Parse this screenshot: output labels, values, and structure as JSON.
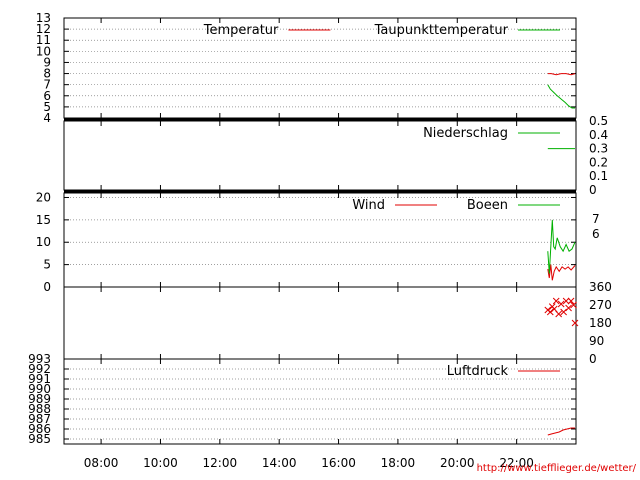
{
  "credit": "http://www.tiefflieger.de/wetter/",
  "colors": {
    "red": "#e00000",
    "green": "#00b000",
    "grid": "#808080"
  },
  "chart_data": [
    {
      "type": "line",
      "ylim": [
        4,
        13
      ],
      "yticks": [
        "4",
        "5",
        "6",
        "7",
        "8",
        "9",
        "10",
        "11",
        "12",
        "13"
      ],
      "legend_position": "top-right",
      "grid": true,
      "series": [
        {
          "name": "Temperatur",
          "color": "#e00000",
          "x": [
            "23:03",
            "23:10",
            "23:20",
            "23:30",
            "23:40",
            "23:50",
            "23:58"
          ],
          "values": [
            8.0,
            8.0,
            7.9,
            8.0,
            8.0,
            7.9,
            8.0
          ]
        },
        {
          "name": "Taupunkttemperatur",
          "color": "#00b000",
          "x": [
            "23:03",
            "23:08",
            "23:15",
            "23:22",
            "23:30",
            "23:38",
            "23:45",
            "23:52",
            "23:58"
          ],
          "values": [
            7.0,
            6.6,
            6.3,
            6.0,
            5.7,
            5.4,
            5.1,
            4.9,
            4.9
          ]
        }
      ]
    },
    {
      "type": "line",
      "ylim": [
        0,
        0.5
      ],
      "yticks": [
        "0",
        "0.1",
        "0.2",
        "0.3",
        "0.4",
        "0.5"
      ],
      "legend_position": "top-right",
      "grid": false,
      "series": [
        {
          "name": "Niederschlag",
          "color": "#00b000",
          "x": [
            "23:03",
            "23:58"
          ],
          "values": [
            0.3,
            0.3
          ]
        }
      ]
    },
    {
      "type": "line",
      "ylim": [
        0,
        21
      ],
      "yticks": [
        "0",
        "5",
        "10",
        "15",
        "20"
      ],
      "right_ticks": [
        "7",
        "6"
      ],
      "legend_position": "top-right",
      "grid": true,
      "series": [
        {
          "name": "Wind",
          "color": "#e00000",
          "x": [
            "23:03",
            "23:06",
            "23:09",
            "23:12",
            "23:16",
            "23:20",
            "23:26",
            "23:32",
            "23:38",
            "23:44",
            "23:50",
            "23:58"
          ],
          "values": [
            4.0,
            2.0,
            5.0,
            1.5,
            3.5,
            4.5,
            3.5,
            4.5,
            4.0,
            4.5,
            3.8,
            4.8
          ]
        },
        {
          "name": "Boeen",
          "color": "#00b000",
          "x": [
            "23:03",
            "23:06",
            "23:09",
            "23:12",
            "23:15",
            "23:18",
            "23:22",
            "23:28",
            "23:34",
            "23:40",
            "23:46",
            "23:52",
            "23:58"
          ],
          "values": [
            8.0,
            3.0,
            9.0,
            15.0,
            9.0,
            8.5,
            11.0,
            9.0,
            8.0,
            9.5,
            8.0,
            8.5,
            10.0
          ]
        }
      ]
    },
    {
      "type": "scatter",
      "ylim": [
        0,
        360
      ],
      "yticks": [
        "0",
        "90",
        "180",
        "270",
        "360"
      ],
      "legend_position": "none",
      "grid": false,
      "series": [
        {
          "name": "",
          "color": "#e00000",
          "x": [
            "23:03",
            "23:08",
            "23:12",
            "23:16",
            "23:20",
            "23:25",
            "23:30",
            "23:35",
            "23:40",
            "23:45",
            "23:50",
            "23:55",
            "23:58"
          ],
          "values": [
            245,
            235,
            262,
            250,
            290,
            225,
            275,
            235,
            290,
            255,
            290,
            270,
            180
          ]
        }
      ]
    },
    {
      "type": "line",
      "ylim": [
        984.5,
        993
      ],
      "yticks": [
        "985",
        "986",
        "987",
        "988",
        "989",
        "990",
        "991",
        "992",
        "993"
      ],
      "legend_position": "top-right",
      "grid": true,
      "series": [
        {
          "name": "Luftdruck",
          "color": "#e00000",
          "x": [
            "23:03",
            "23:10",
            "23:18",
            "23:26",
            "23:34",
            "23:42",
            "23:50",
            "23:58"
          ],
          "values": [
            985.4,
            985.5,
            985.6,
            985.7,
            985.9,
            986.0,
            986.1,
            986.1
          ]
        }
      ]
    }
  ],
  "x_axis": {
    "range": [
      "06:45",
      "24:00"
    ],
    "ticks": [
      "08:00",
      "10:00",
      "12:00",
      "14:00",
      "16:00",
      "18:00",
      "20:00",
      "22:00"
    ]
  }
}
